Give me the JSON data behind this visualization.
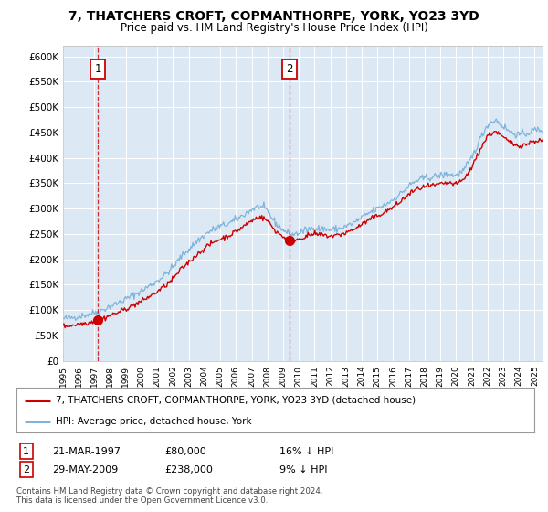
{
  "title": "7, THATCHERS CROFT, COPMANTHORPE, YORK, YO23 3YD",
  "subtitle": "Price paid vs. HM Land Registry's House Price Index (HPI)",
  "title_fontsize": 10,
  "subtitle_fontsize": 8.5,
  "background_color": "#ffffff",
  "plot_bg_color": "#dce9f5",
  "grid_color": "#ffffff",
  "ylim": [
    0,
    620000
  ],
  "yticks": [
    0,
    50000,
    100000,
    150000,
    200000,
    250000,
    300000,
    350000,
    400000,
    450000,
    500000,
    550000,
    600000
  ],
  "ytick_labels": [
    "£0",
    "£50K",
    "£100K",
    "£150K",
    "£200K",
    "£250K",
    "£300K",
    "£350K",
    "£400K",
    "£450K",
    "£500K",
    "£550K",
    "£600K"
  ],
  "sale1_year": 1997.22,
  "sale1_price": 80000,
  "sale1_label": "1",
  "sale1_date": "21-MAR-1997",
  "sale1_amount": "£80,000",
  "sale1_hpi": "16% ↓ HPI",
  "sale2_year": 2009.41,
  "sale2_price": 238000,
  "sale2_label": "2",
  "sale2_date": "29-MAY-2009",
  "sale2_amount": "£238,000",
  "sale2_hpi": "9% ↓ HPI",
  "legend_label1": "7, THATCHERS CROFT, COPMANTHORPE, YORK, YO23 3YD (detached house)",
  "legend_label2": "HPI: Average price, detached house, York",
  "footer1": "Contains HM Land Registry data © Crown copyright and database right 2024.",
  "footer2": "This data is licensed under the Open Government Licence v3.0.",
  "line1_color": "#cc0000",
  "line2_color": "#7fb3d9",
  "marker_color": "#cc0000",
  "dashed_color": "#cc0000",
  "box_color": "#cc0000",
  "xmin": 1995,
  "xmax": 2025.5
}
